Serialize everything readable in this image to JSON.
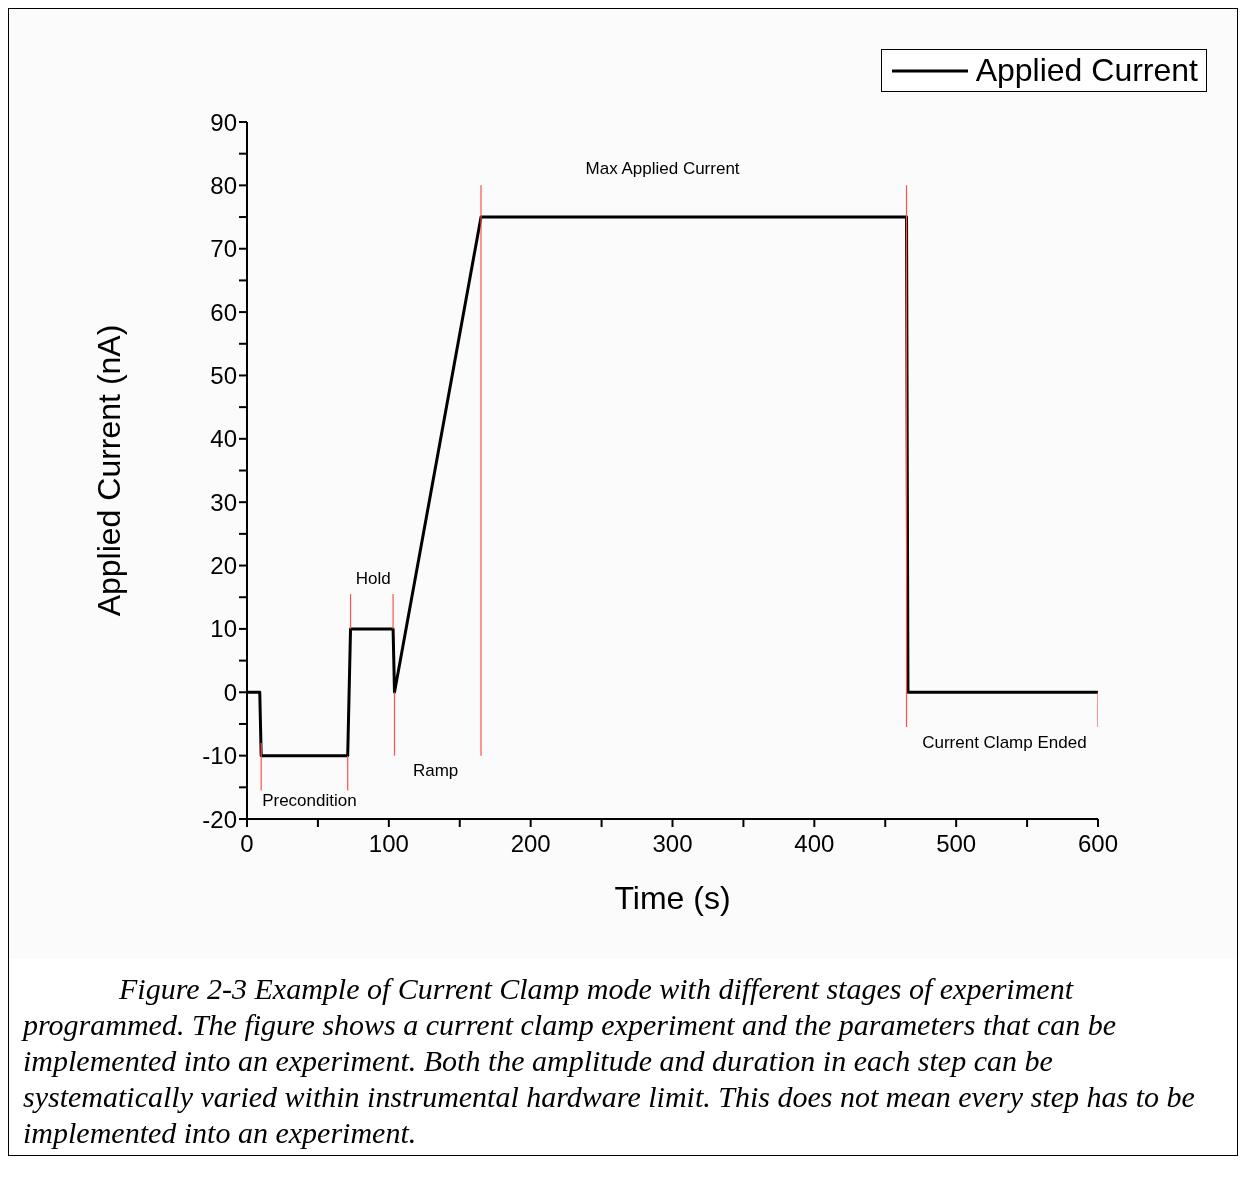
{
  "chart_data": {
    "type": "line",
    "xlabel": "Time (s)",
    "ylabel": "Applied Current (nA)",
    "xlim": [
      0,
      600
    ],
    "xticks": [
      0,
      {
        "value": 50,
        "label": null
      },
      100,
      {
        "value": 150,
        "label": null
      },
      200,
      {
        "value": 250,
        "label": null
      },
      300,
      {
        "value": 350,
        "label": null
      },
      400,
      {
        "value": 450,
        "label": null
      },
      500,
      {
        "value": 550,
        "label": null
      },
      600
    ],
    "ylim": [
      -20,
      90
    ],
    "yticks": [
      -20,
      {
        "value": -15,
        "label": null
      },
      -10,
      {
        "value": -5,
        "label": null
      },
      0,
      {
        "value": 5,
        "label": null
      },
      10,
      {
        "value": 15,
        "label": null
      },
      20,
      {
        "value": 25,
        "label": null
      },
      30,
      {
        "value": 35,
        "label": null
      },
      40,
      {
        "value": 45,
        "label": null
      },
      50,
      {
        "value": 55,
        "label": null
      },
      60,
      {
        "value": 65,
        "label": null
      },
      70,
      {
        "value": 75,
        "label": null
      },
      80,
      {
        "value": 85,
        "label": null
      },
      90
    ],
    "legend": "top right",
    "grid": false,
    "marker": "none",
    "line_style": "solid",
    "series": [
      {
        "name": "Applied Current",
        "color": "#000000",
        "x": [
          0,
          9,
          10,
          71,
          73,
          103,
          104,
          165,
          465,
          466,
          600
        ],
        "values": [
          0,
          0,
          -10,
          -10,
          10,
          10,
          0,
          75,
          75,
          0,
          0
        ]
      },
      {
        "color": "#ff5050",
        "x": [
          10,
          10
        ],
        "values": [
          -8,
          -15.5
        ]
      },
      {
        "color": "#ff5050",
        "x": [
          71,
          71
        ],
        "values": [
          -10,
          -15.5
        ]
      },
      {
        "color": "#ff5050",
        "x": [
          73,
          73
        ],
        "values": [
          15.5,
          10
        ]
      },
      {
        "color": "#ff5050",
        "x": [
          103,
          103
        ],
        "values": [
          15.5,
          10
        ]
      },
      {
        "color": "#ff5050",
        "x": [
          104,
          104
        ],
        "values": [
          0,
          -10
        ]
      },
      {
        "color": "#ff5050",
        "x": [
          165,
          165
        ],
        "values": [
          80,
          -10
        ]
      },
      {
        "color": "#ff5050",
        "x": [
          465,
          465
        ],
        "values": [
          80,
          -5.5
        ]
      },
      {
        "color": "#ff5050",
        "x": [
          600,
          600
        ],
        "values": [
          0,
          -5.5
        ]
      }
    ],
    "annotations": [
      "Precondition",
      "Hold",
      "Ramp",
      "Max Applied Current",
      "Current Clamp Ended",
      "Figure 2-3 Example of Current Clamp mode with different stages of experiment programmed. The figure shows a current clamp experiment and the parameters that can be implemented into an experiment. Both the amplitude and duration in each step can be systematically varied within instrumental hardware limit.  This does not mean every step has to be implemented into an experiment."
    ]
  }
}
